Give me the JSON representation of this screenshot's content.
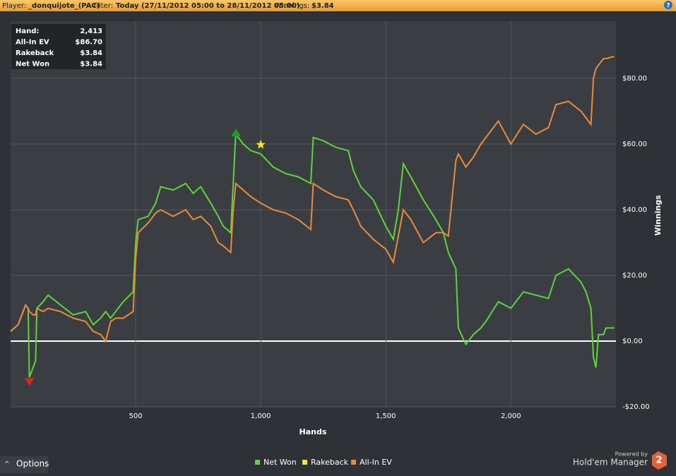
{
  "header": {
    "player_label": "Player:",
    "player": "_donquijote_(PAC)",
    "filter_label": "Filter:",
    "filter": "Today (27/11/2012 05:00 to 28/11/2012 05:00)",
    "winnings_label": "Winnings:",
    "winnings": "$3.84",
    "help": "?"
  },
  "info_box": {
    "rows": [
      [
        "Hand:",
        "2,413"
      ],
      [
        "All-In EV",
        "$86.70"
      ],
      [
        "Rakeback",
        "$3.84"
      ],
      [
        "Net Won",
        "$3.84"
      ]
    ]
  },
  "footer": {
    "options": "Options",
    "powered_by": "Powered by",
    "brand": "Hold'em Manager",
    "version": "2"
  },
  "chart_data": {
    "type": "line",
    "xlabel": "Hands",
    "ylabel": "Winnings",
    "xlim": [
      0,
      2420
    ],
    "ylim": [
      -20.2,
      97.4
    ],
    "xticks": [
      500,
      {
        "value": 1000,
        "label": "1,000"
      },
      {
        "value": 1500,
        "label": "1,500"
      },
      {
        "value": 2000,
        "label": "2,000"
      }
    ],
    "yticks": [
      {
        "value": -20,
        "label": "-$20.00"
      },
      {
        "value": 0,
        "label": "$0.00"
      },
      {
        "value": 20,
        "label": "$20.00"
      },
      {
        "value": 40,
        "label": "$40.00"
      },
      {
        "value": 60,
        "label": "$60.00"
      },
      {
        "value": 80,
        "label": "$80.00"
      }
    ],
    "grid": true,
    "x": [
      0,
      30,
      60,
      70,
      75,
      90,
      100,
      105,
      130,
      150,
      200,
      250,
      300,
      330,
      360,
      380,
      400,
      420,
      450,
      490,
      500,
      510,
      550,
      580,
      600,
      650,
      700,
      730,
      760,
      800,
      830,
      850,
      880,
      890,
      900,
      930,
      960,
      1000,
      1050,
      1100,
      1150,
      1200,
      1210,
      1250,
      1300,
      1350,
      1370,
      1400,
      1450,
      1500,
      1530,
      1550,
      1570,
      1600,
      1650,
      1700,
      1730,
      1750,
      1780,
      1790,
      1820,
      1850,
      1880,
      1900,
      1950,
      2000,
      2050,
      2100,
      2150,
      2180,
      2230,
      2280,
      2300,
      2320,
      2330,
      2340,
      2350,
      2370,
      2380,
      2413
    ],
    "series": [
      {
        "name": "Net Won",
        "color": "#5fd33a",
        "values": [
          3,
          5,
          11,
          10,
          -11,
          -8,
          -6,
          10,
          12,
          14,
          11,
          8,
          9,
          5,
          7,
          9,
          7,
          9,
          12,
          15,
          30,
          37,
          38,
          42,
          47,
          46,
          48,
          45,
          47,
          42,
          38,
          35,
          33,
          48,
          63,
          60,
          58,
          57,
          53,
          51,
          50,
          48,
          62,
          61,
          59,
          58,
          52,
          47,
          43,
          35,
          31,
          40,
          54,
          50,
          43,
          37,
          33,
          27,
          22,
          4,
          -1,
          2,
          4,
          6,
          12,
          10,
          15,
          14,
          13,
          20,
          22,
          18,
          15,
          10,
          -5,
          -8,
          2,
          2,
          4,
          4
        ]
      },
      {
        "name": "Rakeback",
        "color": "#f2e244",
        "values": [
          null,
          null,
          null,
          null,
          null,
          null,
          null,
          null,
          null,
          null,
          null,
          null,
          null,
          null,
          null,
          null,
          null,
          null,
          null,
          null,
          null,
          null,
          null,
          null,
          null,
          null,
          null,
          null,
          null,
          null,
          null,
          null,
          null,
          null,
          null,
          null,
          null,
          null,
          null,
          null,
          null,
          null,
          null,
          null,
          null,
          null,
          null,
          null,
          null,
          null,
          null,
          null,
          null,
          null,
          null,
          null,
          null,
          null,
          null,
          null,
          null,
          null,
          null,
          null,
          null,
          null,
          null,
          null,
          null,
          null,
          null,
          null,
          null,
          null,
          null,
          null,
          null,
          null,
          null,
          null
        ]
      },
      {
        "name": "All-In EV",
        "color": "#e98b3a",
        "values": [
          3,
          5,
          11,
          10,
          9,
          8,
          8,
          10,
          9,
          10,
          9,
          7,
          6,
          3,
          2,
          0,
          6,
          7,
          7,
          9,
          25,
          33,
          36,
          39,
          40,
          38,
          40,
          37,
          38,
          35,
          30,
          29,
          27,
          40,
          48,
          46,
          44,
          42,
          40,
          39,
          37,
          34,
          48,
          46,
          44,
          43,
          40,
          35,
          31,
          28,
          24,
          32,
          40,
          37,
          30,
          33,
          33,
          32,
          55,
          57,
          53,
          56,
          60,
          62,
          67,
          60,
          66,
          63,
          65,
          72,
          73,
          70,
          68,
          66,
          80,
          83,
          84,
          86,
          86,
          86.7
        ]
      }
    ],
    "markers": [
      {
        "x": 75,
        "y": -12.3,
        "shape": "triangle-down",
        "color": "#e02020"
      },
      {
        "x": 901,
        "y": 63.4,
        "shape": "triangle-up",
        "color": "#1f9a2a"
      },
      {
        "x": 1000,
        "y": 59.8,
        "shape": "star",
        "color": "#f5e61c"
      }
    ]
  }
}
